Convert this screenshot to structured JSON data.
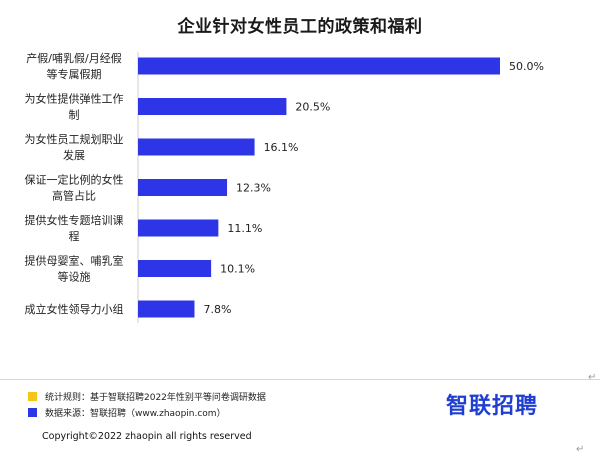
{
  "chart_data": {
    "type": "bar",
    "orientation": "horizontal",
    "title": "企业针对女性员工的政策和福利",
    "categories": [
      [
        "产假/哺乳假/月经假",
        "等专属假期"
      ],
      [
        "为女性提供弹性工作",
        "制"
      ],
      [
        "为女性员工规划职业",
        "发展"
      ],
      [
        "保证一定比例的女性",
        "高管占比"
      ],
      [
        "提供女性专题培训课",
        "程"
      ],
      [
        "提供母婴室、哺乳室",
        "等设施"
      ],
      [
        "成立女性领导力小组"
      ]
    ],
    "values": [
      50.0,
      20.5,
      16.1,
      12.3,
      11.1,
      10.1,
      7.8
    ],
    "value_labels": [
      "50.0%",
      "20.5%",
      "16.1%",
      "12.3%",
      "11.1%",
      "10.1%",
      "7.8%"
    ],
    "xlim": [
      0,
      50
    ],
    "grid": false,
    "bar_color": "#2d35e6"
  },
  "footer": {
    "rule_label": "统计规则：基于智联招聘2022年性别平等问卷调研数据",
    "rule_color": "#f5c518",
    "source_label": "数据来源：智联招聘（www.zhaopin.com）",
    "source_color": "#2d35e6"
  },
  "brand": {
    "logo_text": "智联招聘"
  },
  "copyright": "Copyright©2022 zhaopin all rights reserved",
  "return_mark": "↵"
}
